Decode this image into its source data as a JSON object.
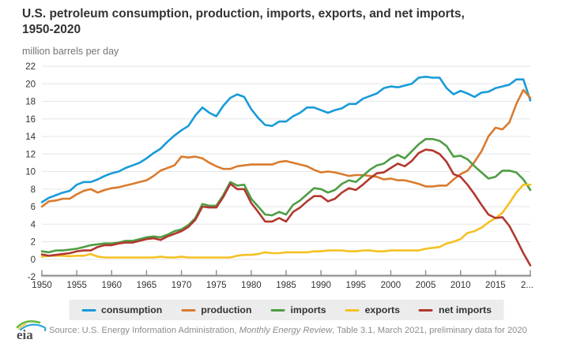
{
  "header": {
    "title_line1": "U.S. petroleum consumption, production, imports, exports, and net imports,",
    "title_line2": "1950-2020"
  },
  "footer": {
    "logo_text": "eia",
    "source_prefix": "Source: U.S. Energy Information Administration, ",
    "source_italic": "Monthly Energy Review",
    "source_suffix": ", Table 3.1, March 2021, preliminary data for 2020"
  },
  "chart_data": {
    "type": "line",
    "title": "U.S. petroleum consumption, production, imports, exports, and net imports, 1950-2020",
    "ylabel": "million barrels per day",
    "xlabel": "",
    "grid": "horizontal",
    "legend_position": "bottom",
    "ylim": [
      -2,
      22
    ],
    "x_range": [
      1950,
      2020
    ],
    "y_ticks": [
      -2,
      0,
      2,
      4,
      6,
      8,
      10,
      12,
      14,
      16,
      18,
      20,
      22
    ],
    "x_ticks": [
      1950,
      1955,
      1960,
      1965,
      1970,
      1975,
      1980,
      1985,
      1990,
      1995,
      2000,
      2005,
      2010,
      2015,
      2020
    ],
    "x_tick_labels": [
      "1950",
      "1955",
      "1960",
      "1965",
      "1970",
      "1975",
      "1980",
      "1985",
      "1990",
      "1995",
      "2000",
      "2005",
      "2010",
      "2015",
      "2..."
    ],
    "axis_color": "#8c8c8c",
    "gridline_color": "#e6e6e6",
    "years": [
      1950,
      1951,
      1952,
      1953,
      1954,
      1955,
      1956,
      1957,
      1958,
      1959,
      1960,
      1961,
      1962,
      1963,
      1964,
      1965,
      1966,
      1967,
      1968,
      1969,
      1970,
      1971,
      1972,
      1973,
      1974,
      1975,
      1976,
      1977,
      1978,
      1979,
      1980,
      1981,
      1982,
      1983,
      1984,
      1985,
      1986,
      1987,
      1988,
      1989,
      1990,
      1991,
      1992,
      1993,
      1994,
      1995,
      1996,
      1997,
      1998,
      1999,
      2000,
      2001,
      2002,
      2003,
      2004,
      2005,
      2006,
      2007,
      2008,
      2009,
      2010,
      2011,
      2012,
      2013,
      2014,
      2015,
      2016,
      2017,
      2018,
      2019,
      2020
    ],
    "series": [
      {
        "name": "consumption",
        "color": "#189bd8",
        "values": [
          6.5,
          7.0,
          7.3,
          7.6,
          7.8,
          8.5,
          8.8,
          8.8,
          9.1,
          9.5,
          9.8,
          10.0,
          10.4,
          10.7,
          11.0,
          11.5,
          12.1,
          12.6,
          13.4,
          14.1,
          14.7,
          15.2,
          16.4,
          17.3,
          16.7,
          16.3,
          17.5,
          18.4,
          18.8,
          18.5,
          17.1,
          16.1,
          15.3,
          15.2,
          15.7,
          15.7,
          16.3,
          16.7,
          17.3,
          17.3,
          17.0,
          16.7,
          17.0,
          17.2,
          17.7,
          17.7,
          18.3,
          18.6,
          18.9,
          19.5,
          19.7,
          19.6,
          19.8,
          20.0,
          20.7,
          20.8,
          20.7,
          20.7,
          19.5,
          18.8,
          19.2,
          18.9,
          18.5,
          19.0,
          19.1,
          19.5,
          19.7,
          19.9,
          20.5,
          20.5,
          18.1
        ]
      },
      {
        "name": "production",
        "color": "#d97b2e",
        "values": [
          6.0,
          6.6,
          6.7,
          6.9,
          6.9,
          7.4,
          7.8,
          8.0,
          7.6,
          7.9,
          8.1,
          8.2,
          8.4,
          8.6,
          8.8,
          9.0,
          9.5,
          10.1,
          10.4,
          10.7,
          11.7,
          11.6,
          11.7,
          11.5,
          11.0,
          10.6,
          10.3,
          10.3,
          10.6,
          10.7,
          10.8,
          10.8,
          10.8,
          10.8,
          11.1,
          11.2,
          11.0,
          10.8,
          10.6,
          10.2,
          9.9,
          10.0,
          9.9,
          9.7,
          9.5,
          9.6,
          9.6,
          9.5,
          9.4,
          9.1,
          9.2,
          9.0,
          9.0,
          8.8,
          8.6,
          8.3,
          8.3,
          8.4,
          8.4,
          9.1,
          9.7,
          10.1,
          11.1,
          12.3,
          14.0,
          15.0,
          14.8,
          15.6,
          17.7,
          19.3,
          18.4
        ]
      },
      {
        "name": "imports",
        "color": "#4f9d45",
        "values": [
          0.9,
          0.8,
          1.0,
          1.0,
          1.1,
          1.2,
          1.4,
          1.6,
          1.7,
          1.8,
          1.8,
          1.9,
          2.1,
          2.1,
          2.3,
          2.5,
          2.6,
          2.5,
          2.8,
          3.2,
          3.4,
          3.9,
          4.7,
          6.3,
          6.1,
          6.1,
          7.3,
          8.8,
          8.4,
          8.5,
          6.9,
          6.0,
          5.1,
          5.0,
          5.4,
          5.1,
          6.2,
          6.7,
          7.4,
          8.1,
          8.0,
          7.6,
          7.9,
          8.6,
          9.0,
          8.8,
          9.5,
          10.2,
          10.7,
          10.9,
          11.5,
          11.9,
          11.5,
          12.3,
          13.1,
          13.7,
          13.7,
          13.5,
          12.9,
          11.7,
          11.8,
          11.4,
          10.6,
          9.9,
          9.2,
          9.4,
          10.1,
          10.1,
          9.9,
          9.1,
          7.9
        ]
      },
      {
        "name": "exports",
        "color": "#f5c122",
        "values": [
          0.3,
          0.4,
          0.4,
          0.4,
          0.35,
          0.4,
          0.4,
          0.6,
          0.3,
          0.2,
          0.2,
          0.2,
          0.2,
          0.2,
          0.2,
          0.2,
          0.2,
          0.3,
          0.2,
          0.2,
          0.3,
          0.2,
          0.2,
          0.2,
          0.2,
          0.2,
          0.2,
          0.2,
          0.4,
          0.5,
          0.5,
          0.6,
          0.8,
          0.7,
          0.7,
          0.8,
          0.8,
          0.8,
          0.8,
          0.9,
          0.9,
          1.0,
          1.0,
          1.0,
          0.9,
          0.9,
          1.0,
          1.0,
          0.9,
          0.9,
          1.0,
          1.0,
          1.0,
          1.0,
          1.0,
          1.2,
          1.3,
          1.4,
          1.8,
          2.0,
          2.3,
          3.0,
          3.2,
          3.6,
          4.2,
          4.7,
          5.3,
          6.4,
          7.6,
          8.5,
          8.5
        ]
      },
      {
        "name": "net imports",
        "color": "#b2382f",
        "values": [
          0.55,
          0.4,
          0.5,
          0.6,
          0.7,
          0.9,
          1.0,
          1.0,
          1.4,
          1.6,
          1.6,
          1.8,
          1.9,
          1.9,
          2.1,
          2.3,
          2.4,
          2.2,
          2.6,
          2.9,
          3.2,
          3.7,
          4.5,
          6.0,
          5.9,
          5.9,
          7.1,
          8.6,
          8.0,
          8.0,
          6.4,
          5.4,
          4.3,
          4.3,
          4.7,
          4.3,
          5.4,
          5.9,
          6.6,
          7.2,
          7.2,
          6.6,
          6.9,
          7.6,
          8.1,
          7.9,
          8.5,
          9.2,
          9.8,
          9.9,
          10.4,
          10.9,
          10.6,
          11.2,
          12.1,
          12.5,
          12.4,
          12.0,
          11.1,
          9.7,
          9.4,
          8.5,
          7.4,
          6.2,
          5.1,
          4.7,
          4.8,
          3.8,
          2.3,
          0.7,
          -0.7
        ]
      }
    ]
  }
}
